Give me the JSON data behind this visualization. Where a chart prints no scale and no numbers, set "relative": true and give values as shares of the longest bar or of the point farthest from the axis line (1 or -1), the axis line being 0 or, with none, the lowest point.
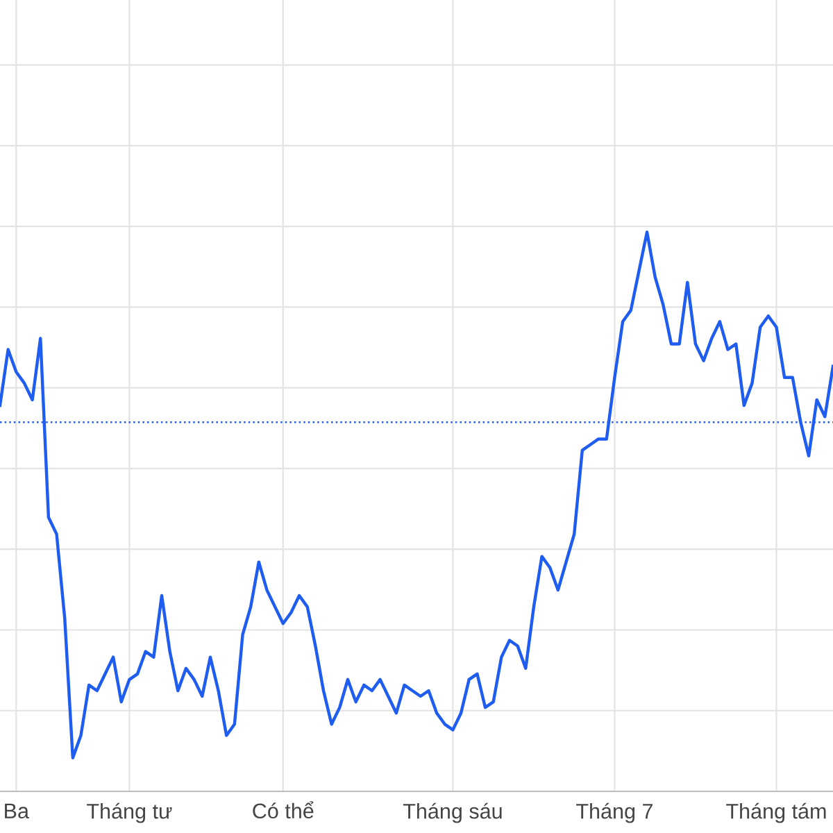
{
  "chart_data": {
    "type": "line",
    "relative": true,
    "color": "#1f5cf0",
    "grid": true,
    "line_style": "solid",
    "marker": "none",
    "categories": [
      null,
      null,
      "Ba",
      null,
      null,
      null,
      null,
      null,
      null,
      null,
      null,
      null,
      null,
      null,
      null,
      null,
      "Tháng tư",
      null,
      null,
      null,
      null,
      null,
      null,
      null,
      null,
      null,
      null,
      null,
      null,
      null,
      null,
      null,
      null,
      null,
      null,
      "Có thể",
      null,
      null,
      null,
      null,
      null,
      null,
      null,
      null,
      null,
      null,
      null,
      null,
      null,
      null,
      null,
      null,
      null,
      null,
      null,
      null,
      "Tháng sáu",
      null,
      null,
      null,
      null,
      null,
      null,
      null,
      null,
      null,
      null,
      null,
      null,
      null,
      null,
      null,
      null,
      null,
      null,
      null,
      "Tháng 7",
      null,
      null,
      null,
      null,
      null,
      null,
      null,
      null,
      null,
      null,
      null,
      null,
      null,
      null,
      null,
      null,
      null,
      null,
      null,
      "Tháng tám",
      null,
      null,
      null,
      null,
      null,
      null,
      null
    ],
    "values": [
      0.69,
      0.79,
      0.75,
      0.73,
      0.7,
      0.81,
      0.49,
      0.46,
      0.31,
      0.06,
      0.1,
      0.19,
      0.18,
      0.21,
      0.24,
      0.16,
      0.2,
      0.21,
      0.25,
      0.24,
      0.35,
      0.25,
      0.18,
      0.22,
      0.2,
      0.17,
      0.24,
      0.18,
      0.1,
      0.12,
      0.28,
      0.33,
      0.41,
      0.36,
      0.33,
      0.3,
      0.32,
      0.35,
      0.33,
      0.26,
      0.18,
      0.12,
      0.15,
      0.2,
      0.16,
      0.19,
      0.18,
      0.2,
      0.17,
      0.14,
      0.19,
      0.18,
      0.17,
      0.18,
      0.14,
      0.12,
      0.11,
      0.14,
      0.2,
      0.21,
      0.15,
      0.16,
      0.24,
      0.27,
      0.26,
      0.22,
      0.33,
      0.42,
      0.4,
      0.36,
      0.41,
      0.46,
      0.61,
      0.62,
      0.63,
      0.63,
      0.74,
      0.84,
      0.86,
      0.93,
      1.0,
      0.92,
      0.87,
      0.8,
      0.8,
      0.91,
      0.8,
      0.77,
      0.81,
      0.84,
      0.79,
      0.8,
      0.69,
      0.73,
      0.83,
      0.85,
      0.83,
      0.74,
      0.74,
      0.66,
      0.6,
      0.7,
      0.67,
      0.76
    ],
    "ref_lines": [
      {
        "axis": "y",
        "value": 0.66,
        "color": "#1f5cf0",
        "line_style": "dotted"
      }
    ]
  }
}
